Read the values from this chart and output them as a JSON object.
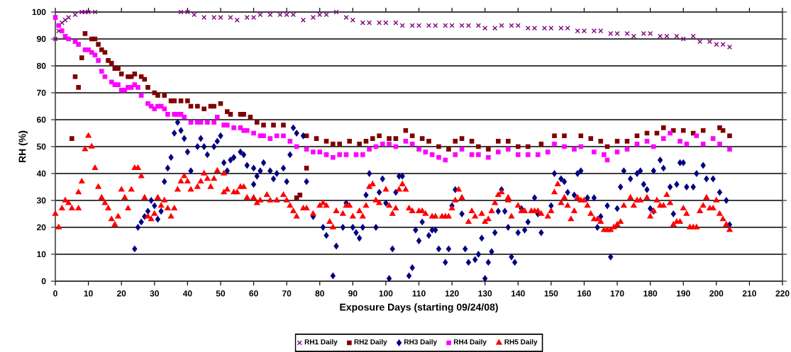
{
  "chart_data": {
    "type": "scatter",
    "xlabel": "Exposure Days (starting 09/24/08)",
    "ylabel": "RH (%)",
    "xlim": [
      0,
      220
    ],
    "xticks": [
      0,
      10,
      20,
      30,
      40,
      50,
      60,
      70,
      80,
      90,
      100,
      110,
      120,
      130,
      140,
      150,
      160,
      170,
      180,
      190,
      200,
      210,
      220
    ],
    "ylim": [
      0,
      100
    ],
    "yticks": [
      0,
      10,
      20,
      30,
      40,
      50,
      60,
      70,
      80,
      90,
      100
    ],
    "grid": "y",
    "legend": "bottom",
    "series": [
      {
        "name": "RH1 Daily",
        "color": "#800080",
        "marker": "cross",
        "x": [
          0,
          1,
          2,
          3,
          4,
          6,
          8,
          9,
          10,
          12,
          38,
          40,
          42,
          45,
          48,
          50,
          53,
          55,
          58,
          60,
          62,
          65,
          68,
          70,
          72,
          75,
          78,
          80,
          82,
          85,
          88,
          90,
          93,
          95,
          98,
          100,
          103,
          105,
          108,
          110,
          113,
          115,
          118,
          120,
          123,
          125,
          128,
          130,
          133,
          135,
          138,
          140,
          143,
          145,
          148,
          150,
          153,
          155,
          158,
          160,
          163,
          165,
          168,
          170,
          173,
          175,
          178,
          180,
          183,
          185,
          188,
          190,
          193,
          195,
          198,
          200,
          202,
          204
        ],
        "values": [
          90,
          93,
          96,
          97,
          98,
          99,
          100,
          100,
          100,
          100,
          100,
          100,
          99,
          98,
          98,
          98,
          98,
          97,
          98,
          98,
          99,
          99,
          99,
          99,
          99,
          97,
          98,
          99,
          99,
          100,
          98,
          97,
          96,
          96,
          96,
          96,
          96,
          95,
          95,
          95,
          95,
          95,
          95,
          95,
          95,
          95,
          95,
          94,
          94,
          95,
          95,
          95,
          94,
          94,
          94,
          94,
          94,
          94,
          93,
          93,
          93,
          93,
          92,
          92,
          92,
          91,
          92,
          92,
          91,
          91,
          91,
          90,
          91,
          89,
          89,
          88,
          88,
          87
        ]
      },
      {
        "name": "RH2 Daily",
        "color": "#800000",
        "marker": "square",
        "x": [
          5,
          6,
          7,
          8,
          9,
          11,
          12,
          13,
          14,
          15,
          16,
          17,
          18,
          19,
          20,
          22,
          23,
          24,
          26,
          27,
          28,
          30,
          31,
          33,
          35,
          36,
          38,
          40,
          41,
          43,
          45,
          47,
          48,
          50,
          52,
          53,
          56,
          57,
          59,
          61,
          63,
          66,
          69,
          73,
          74,
          76,
          76,
          79,
          82,
          84,
          86,
          89,
          92,
          94,
          96,
          98,
          101,
          103,
          106,
          108,
          111,
          113,
          116,
          119,
          121,
          123,
          126,
          128,
          131,
          134,
          137,
          140,
          143,
          147,
          151,
          154,
          159,
          162,
          165,
          167,
          170,
          173,
          176,
          179,
          182,
          184,
          187,
          190,
          193,
          196,
          201,
          202,
          204
        ],
        "values": [
          53,
          76,
          72,
          83,
          92,
          90,
          90,
          88,
          86,
          85,
          82,
          81,
          79,
          79,
          77,
          76,
          76,
          77,
          76,
          75,
          72,
          70,
          69,
          69,
          67,
          67,
          67,
          67,
          65,
          65,
          64,
          65,
          65,
          66,
          63,
          62,
          62,
          62,
          61,
          59,
          58,
          58,
          58,
          31,
          32,
          42,
          54,
          53,
          52,
          51,
          51,
          52,
          51,
          52,
          53,
          54,
          53,
          53,
          56,
          54,
          53,
          52,
          50,
          49,
          52,
          53,
          52,
          50,
          49,
          52,
          52,
          50,
          50,
          51,
          54,
          54,
          54,
          53,
          52,
          50,
          52,
          52,
          54,
          55,
          55,
          57,
          56,
          56,
          55,
          56,
          57,
          56,
          54
        ]
      },
      {
        "name": "RH3 Daily",
        "color": "#000080",
        "marker": "diamond",
        "x": [
          24,
          25,
          26,
          27,
          28,
          29,
          30,
          31,
          32,
          33,
          34,
          35,
          36,
          37,
          38,
          39,
          40,
          41,
          43,
          44,
          45,
          46,
          48,
          49,
          50,
          51,
          52,
          53,
          54,
          56,
          57,
          58,
          60,
          60,
          61,
          62,
          63,
          65,
          66,
          67,
          69,
          70,
          71,
          72,
          73,
          75,
          76,
          78,
          81,
          82,
          84,
          85,
          87,
          88,
          90,
          91,
          92,
          93,
          94,
          95,
          97,
          98,
          99,
          100,
          101,
          102,
          103,
          104,
          105,
          107,
          108,
          109,
          110,
          111,
          113,
          114,
          115,
          116,
          118,
          119,
          120,
          121,
          123,
          124,
          125,
          127,
          128,
          129,
          130,
          131,
          132,
          133,
          134,
          135,
          136,
          137,
          138,
          139,
          140,
          141,
          142,
          143,
          145,
          146,
          147,
          150,
          151,
          153,
          154,
          155,
          157,
          158,
          159,
          161,
          163,
          164,
          165,
          167,
          168,
          170,
          171,
          172,
          174,
          176,
          177,
          178,
          179,
          180,
          181,
          181,
          183,
          184,
          186,
          187,
          188,
          189,
          190,
          191,
          193,
          194,
          196,
          197,
          199,
          201,
          203,
          204
        ],
        "values": [
          12,
          20,
          22,
          24,
          26,
          30,
          28,
          23,
          26,
          37,
          42,
          46,
          55,
          59,
          56,
          53,
          48,
          41,
          50,
          53,
          50,
          47,
          50,
          52,
          54,
          44,
          41,
          45,
          46,
          48,
          47,
          43,
          42,
          36,
          39,
          41,
          44,
          41,
          38,
          40,
          42,
          37,
          47,
          57,
          55,
          54,
          37,
          24,
          20,
          17,
          2,
          13,
          20,
          29,
          20,
          18,
          16,
          20,
          32,
          40,
          20,
          33,
          38,
          29,
          1,
          12,
          33,
          39,
          39,
          2,
          5,
          19,
          15,
          22,
          17,
          19,
          19,
          12,
          7,
          12,
          28,
          34,
          25,
          12,
          7,
          8,
          10,
          16,
          1,
          7,
          11,
          18,
          26,
          34,
          26,
          20,
          9,
          7,
          18,
          27,
          19,
          22,
          31,
          25,
          18,
          28,
          40,
          38,
          37,
          33,
          32,
          40,
          41,
          31,
          31,
          20,
          24,
          28,
          9,
          27,
          35,
          41,
          38,
          40,
          41,
          36,
          34,
          27,
          26,
          41,
          45,
          42,
          35,
          25,
          36,
          44,
          44,
          35,
          35,
          40,
          43,
          38,
          38,
          33,
          30,
          21
        ]
      },
      {
        "name": "RH4 Daily",
        "color": "#ff00ff",
        "marker": "square",
        "x": [
          0,
          1,
          2,
          3,
          4,
          6,
          7,
          9,
          10,
          11,
          12,
          13,
          14,
          15,
          17,
          18,
          19,
          20,
          21,
          22,
          23,
          24,
          25,
          26,
          28,
          29,
          30,
          31,
          32,
          33,
          34,
          36,
          37,
          38,
          39,
          41,
          43,
          44,
          46,
          48,
          49,
          51,
          52,
          54,
          56,
          57,
          58,
          60,
          62,
          63,
          65,
          67,
          69,
          71,
          73,
          76,
          78,
          80,
          82,
          84,
          86,
          88,
          91,
          93,
          95,
          97,
          99,
          101,
          103,
          106,
          108,
          110,
          112,
          114,
          116,
          118,
          121,
          123,
          126,
          128,
          131,
          134,
          137,
          140,
          143,
          146,
          149,
          151,
          154,
          157,
          159,
          163,
          166,
          167,
          170,
          173,
          176,
          179,
          181,
          184,
          186,
          189,
          191,
          194,
          196,
          199,
          201,
          204
        ],
        "values": [
          98,
          95,
          93,
          91,
          90,
          89,
          88,
          86,
          86,
          85,
          84,
          82,
          78,
          76,
          74,
          73,
          73,
          71,
          71,
          72,
          72,
          73,
          72,
          69,
          66,
          65,
          64,
          65,
          65,
          64,
          62,
          62,
          62,
          62,
          61,
          59,
          59,
          59,
          59,
          59,
          61,
          58,
          58,
          57,
          57,
          56,
          56,
          55,
          54,
          54,
          53,
          54,
          54,
          52,
          50,
          49,
          48,
          48,
          47,
          46,
          47,
          47,
          47,
          47,
          49,
          50,
          51,
          51,
          50,
          52,
          51,
          49,
          48,
          47,
          46,
          45,
          47,
          49,
          47,
          47,
          46,
          48,
          49,
          47,
          47,
          47,
          48,
          51,
          50,
          49,
          50,
          48,
          47,
          45,
          48,
          49,
          51,
          52,
          50,
          53,
          55,
          52,
          51,
          54,
          51,
          53,
          51,
          49
        ]
      },
      {
        "name": "RH5 Daily",
        "color": "#ff0000",
        "marker": "triangle",
        "x": [
          0,
          1,
          2,
          3,
          4,
          5,
          7,
          7,
          8,
          9,
          10,
          11,
          12,
          13,
          14,
          15,
          16,
          17,
          18,
          19,
          20,
          21,
          22,
          23,
          24,
          25,
          26,
          27,
          28,
          29,
          30,
          31,
          32,
          33,
          34,
          35,
          36,
          37,
          38,
          39,
          40,
          41,
          43,
          44,
          45,
          46,
          47,
          48,
          49,
          51,
          51,
          52,
          54,
          55,
          56,
          57,
          58,
          60,
          61,
          62,
          64,
          65,
          67,
          69,
          70,
          71,
          72,
          73,
          75,
          76,
          78,
          80,
          81,
          82,
          83,
          84,
          85,
          87,
          88,
          89,
          90,
          92,
          93,
          94,
          95,
          96,
          97,
          98,
          100,
          101,
          102,
          103,
          104,
          105,
          106,
          107,
          108,
          110,
          111,
          112,
          114,
          115,
          117,
          118,
          119,
          120,
          121,
          122,
          123,
          125,
          126,
          127,
          129,
          130,
          131,
          132,
          133,
          134,
          135,
          137,
          137,
          138,
          140,
          141,
          142,
          144,
          145,
          146,
          147,
          149,
          150,
          151,
          152,
          153,
          154,
          155,
          156,
          157,
          158,
          159,
          160,
          161,
          162,
          163,
          164,
          165,
          166,
          167,
          168,
          169,
          170,
          171,
          172,
          174,
          175,
          176,
          177,
          179,
          180,
          181,
          182,
          183,
          184,
          185,
          186,
          187,
          188,
          189,
          190,
          191,
          192,
          193,
          194,
          195,
          196,
          197,
          198,
          199,
          200,
          201,
          202,
          203,
          204
        ],
        "values": [
          25,
          20,
          27,
          30,
          29,
          27,
          27,
          33,
          37,
          49,
          54,
          50,
          42,
          35,
          31,
          29,
          27,
          23,
          21,
          24,
          34,
          31,
          27,
          34,
          42,
          42,
          39,
          31,
          24,
          23,
          25,
          31,
          28,
          30,
          27,
          24,
          27,
          34,
          37,
          39,
          37,
          34,
          35,
          37,
          40,
          38,
          35,
          38,
          41,
          40,
          33,
          34,
          33,
          33,
          35,
          35,
          31,
          31,
          29,
          30,
          32,
          30,
          30,
          32,
          30,
          28,
          26,
          24,
          27,
          27,
          25,
          28,
          29,
          28,
          22,
          20,
          26,
          25,
          28,
          28,
          24,
          26,
          24,
          28,
          35,
          36,
          30,
          29,
          34,
          28,
          25,
          27,
          34,
          36,
          34,
          27,
          26,
          26,
          26,
          25,
          24,
          24,
          24,
          24,
          24,
          27,
          30,
          34,
          31,
          22,
          26,
          24,
          25,
          22,
          23,
          26,
          29,
          32,
          33,
          31,
          30,
          24,
          28,
          26,
          26,
          26,
          26,
          26,
          25,
          24,
          26,
          33,
          36,
          29,
          31,
          28,
          23,
          26,
          31,
          30,
          30,
          28,
          25,
          23,
          23,
          22,
          19,
          19,
          19,
          20,
          21,
          22,
          28,
          31,
          28,
          30,
          30,
          31,
          24,
          26,
          30,
          28,
          28,
          32,
          29,
          21,
          22,
          22,
          27,
          25,
          20,
          20,
          20,
          26,
          28,
          31,
          27,
          27,
          30,
          25,
          23,
          21,
          19
        ]
      }
    ]
  }
}
